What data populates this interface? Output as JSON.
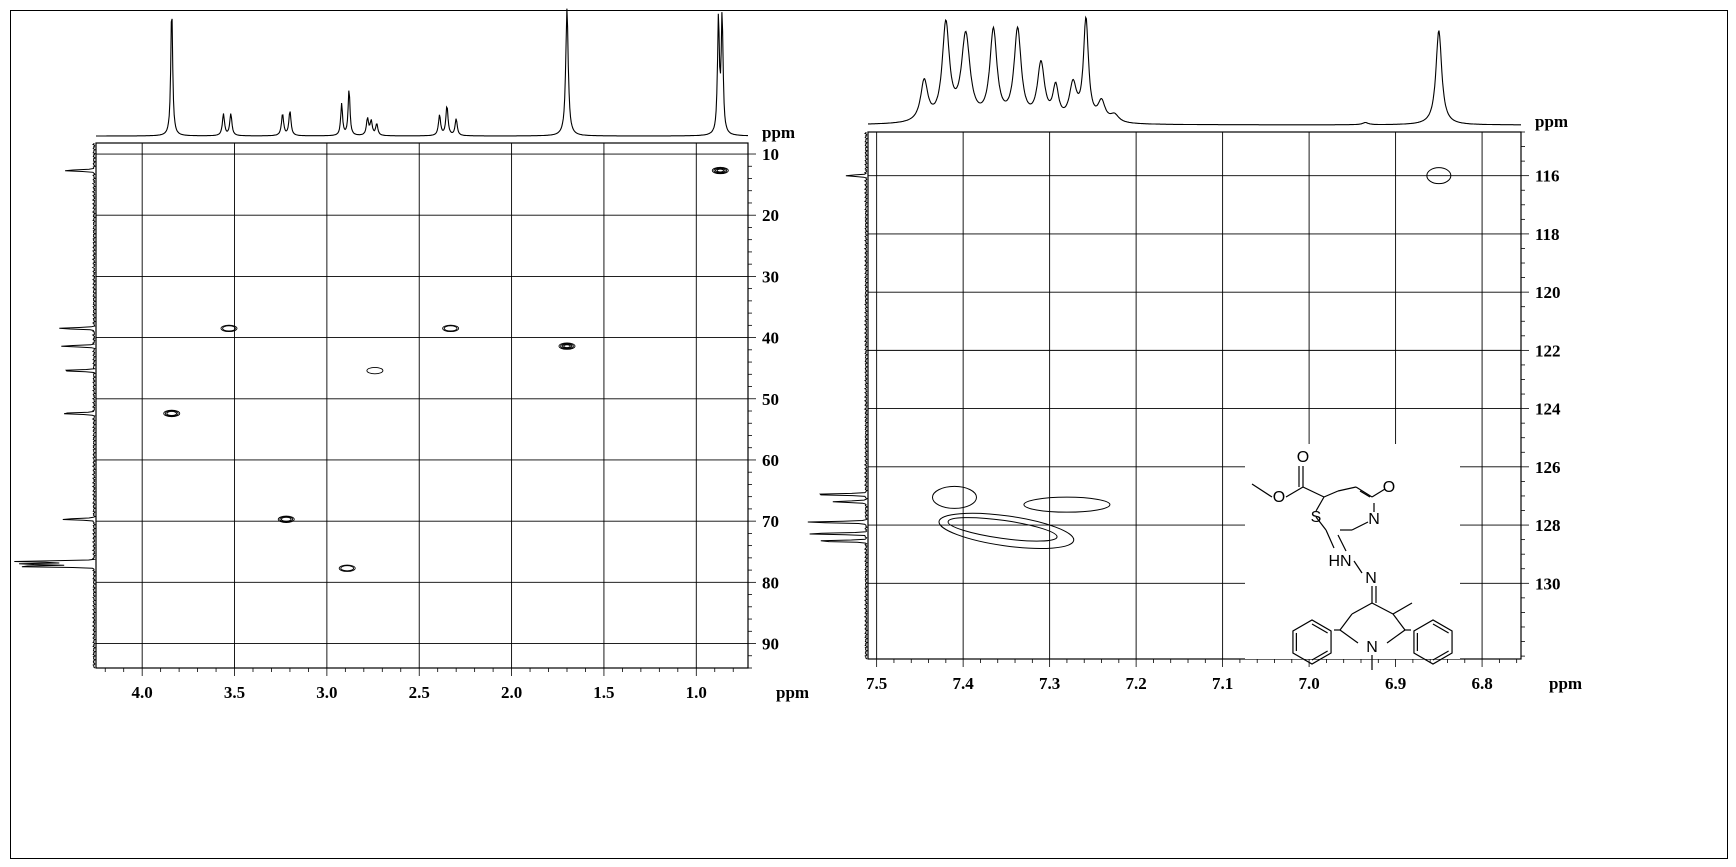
{
  "chart_data": [
    {
      "type": "scatter",
      "subtype": "2D HSQC NMR contour",
      "x_axis": {
        "unit_label": "ppm",
        "range": [
          4.25,
          0.72
        ],
        "tick_labels": [
          "4.0",
          "3.5",
          "3.0",
          "2.5",
          "2.0",
          "1.5",
          "1.0"
        ],
        "ticks": [
          4.0,
          3.5,
          3.0,
          2.5,
          2.0,
          1.5,
          1.0
        ],
        "reversed": true
      },
      "y_axis": {
        "unit_label": "ppm",
        "range": [
          8.2,
          94
        ],
        "tick_labels": [
          "10",
          "20",
          "30",
          "40",
          "50",
          "60",
          "70",
          "80",
          "90"
        ],
        "ticks": [
          10,
          20,
          30,
          40,
          50,
          60,
          70,
          80,
          90
        ],
        "reversed": true
      },
      "grid": true,
      "cross_peaks": [
        {
          "x": 0.87,
          "y": 12.7,
          "levels": 4
        },
        {
          "x": 3.53,
          "y": 38.5,
          "levels": 2
        },
        {
          "x": 2.33,
          "y": 38.5,
          "levels": 2
        },
        {
          "x": 1.7,
          "y": 41.4,
          "levels": 4
        },
        {
          "x": 2.74,
          "y": 45.4,
          "levels": 1
        },
        {
          "x": 3.84,
          "y": 52.4,
          "levels": 3
        },
        {
          "x": 3.22,
          "y": 69.7,
          "levels": 3
        },
        {
          "x": 2.89,
          "y": 77.7,
          "levels": 2
        }
      ],
      "proton_projection_peaks": [
        {
          "ppm": 3.84,
          "height": 1.0,
          "width": 0.006
        },
        {
          "ppm": 3.56,
          "height": 0.17,
          "width": 0.007
        },
        {
          "ppm": 3.52,
          "height": 0.17,
          "width": 0.007
        },
        {
          "ppm": 3.24,
          "height": 0.17,
          "width": 0.007
        },
        {
          "ppm": 3.2,
          "height": 0.19,
          "width": 0.007
        },
        {
          "ppm": 2.92,
          "height": 0.25,
          "width": 0.006
        },
        {
          "ppm": 2.88,
          "height": 0.36,
          "width": 0.006
        },
        {
          "ppm": 2.78,
          "height": 0.13,
          "width": 0.007
        },
        {
          "ppm": 2.76,
          "height": 0.11,
          "width": 0.007
        },
        {
          "ppm": 2.73,
          "height": 0.09,
          "width": 0.007
        },
        {
          "ppm": 2.39,
          "height": 0.16,
          "width": 0.007
        },
        {
          "ppm": 2.35,
          "height": 0.23,
          "width": 0.007
        },
        {
          "ppm": 2.3,
          "height": 0.13,
          "width": 0.007
        },
        {
          "ppm": 1.7,
          "height": 1.0,
          "width": 0.008
        },
        {
          "ppm": 0.88,
          "height": 0.9,
          "width": 0.006
        },
        {
          "ppm": 0.86,
          "height": 0.92,
          "width": 0.006
        }
      ],
      "carbon_projection_peaks": [
        {
          "ppm": 12.7,
          "height": 0.38
        },
        {
          "ppm": 38.5,
          "height": 0.45
        },
        {
          "ppm": 41.4,
          "height": 0.42
        },
        {
          "ppm": 45.4,
          "height": 0.4
        },
        {
          "ppm": 52.4,
          "height": 0.42
        },
        {
          "ppm": 69.7,
          "height": 0.4
        },
        {
          "ppm": 76.6,
          "height": 1.0
        },
        {
          "ppm": 77.0,
          "height": 1.0
        },
        {
          "ppm": 77.4,
          "height": 1.0
        }
      ]
    },
    {
      "type": "scatter",
      "subtype": "2D HSQC NMR contour (aromatic region)",
      "x_axis": {
        "unit_label": "ppm",
        "range": [
          7.51,
          6.755
        ],
        "tick_labels": [
          "7.5",
          "7.4",
          "7.3",
          "7.2",
          "7.1",
          "7.0",
          "6.9",
          "6.8"
        ],
        "ticks": [
          7.5,
          7.4,
          7.3,
          7.2,
          7.1,
          7.0,
          6.9,
          6.8
        ],
        "reversed": true
      },
      "y_axis": {
        "unit_label": "ppm",
        "range": [
          114.5,
          132.6
        ],
        "tick_labels": [
          "116",
          "118",
          "120",
          "122",
          "124",
          "126",
          "128",
          "130"
        ],
        "ticks": [
          116,
          118,
          120,
          122,
          124,
          126,
          128,
          130
        ],
        "reversed": true
      },
      "grid": true,
      "cross_peaks": [
        {
          "x": 6.85,
          "y": 116.0,
          "levels": 1
        },
        {
          "x": 7.41,
          "y": 127.05,
          "levels": 1
        },
        {
          "x": 7.28,
          "y": 127.3,
          "levels": 1
        },
        {
          "x": 7.35,
          "y": 128.2,
          "levels": 2
        }
      ],
      "proton_projection_peaks": [
        {
          "ppm": 7.445,
          "height": 0.37,
          "width": 0.005
        },
        {
          "ppm": 7.42,
          "height": 0.88,
          "width": 0.005
        },
        {
          "ppm": 7.397,
          "height": 0.78,
          "width": 0.006
        },
        {
          "ppm": 7.365,
          "height": 0.82,
          "width": 0.005
        },
        {
          "ppm": 7.337,
          "height": 0.83,
          "width": 0.005
        },
        {
          "ppm": 7.31,
          "height": 0.52,
          "width": 0.005
        },
        {
          "ppm": 7.293,
          "height": 0.3,
          "width": 0.004
        },
        {
          "ppm": 7.273,
          "height": 0.33,
          "width": 0.005
        },
        {
          "ppm": 7.258,
          "height": 0.92,
          "width": 0.0035
        },
        {
          "ppm": 7.24,
          "height": 0.18,
          "width": 0.005
        },
        {
          "ppm": 7.225,
          "height": 0.07,
          "width": 0.006
        },
        {
          "ppm": 6.935,
          "height": 0.02,
          "width": 0.004
        },
        {
          "ppm": 6.85,
          "height": 0.86,
          "width": 0.004
        }
      ],
      "carbon_projection_peaks": [
        {
          "ppm": 116.0,
          "height": 0.35
        },
        {
          "ppm": 126.95,
          "height": 0.9
        },
        {
          "ppm": 127.2,
          "height": 0.55
        },
        {
          "ppm": 127.9,
          "height": 1.0
        },
        {
          "ppm": 128.3,
          "height": 1.0
        },
        {
          "ppm": 128.55,
          "height": 0.8
        }
      ],
      "inset_structure": {
        "atom_labels": [
          "O",
          "O",
          "O",
          "S",
          "N",
          "HN",
          "N",
          "N"
        ]
      }
    }
  ]
}
